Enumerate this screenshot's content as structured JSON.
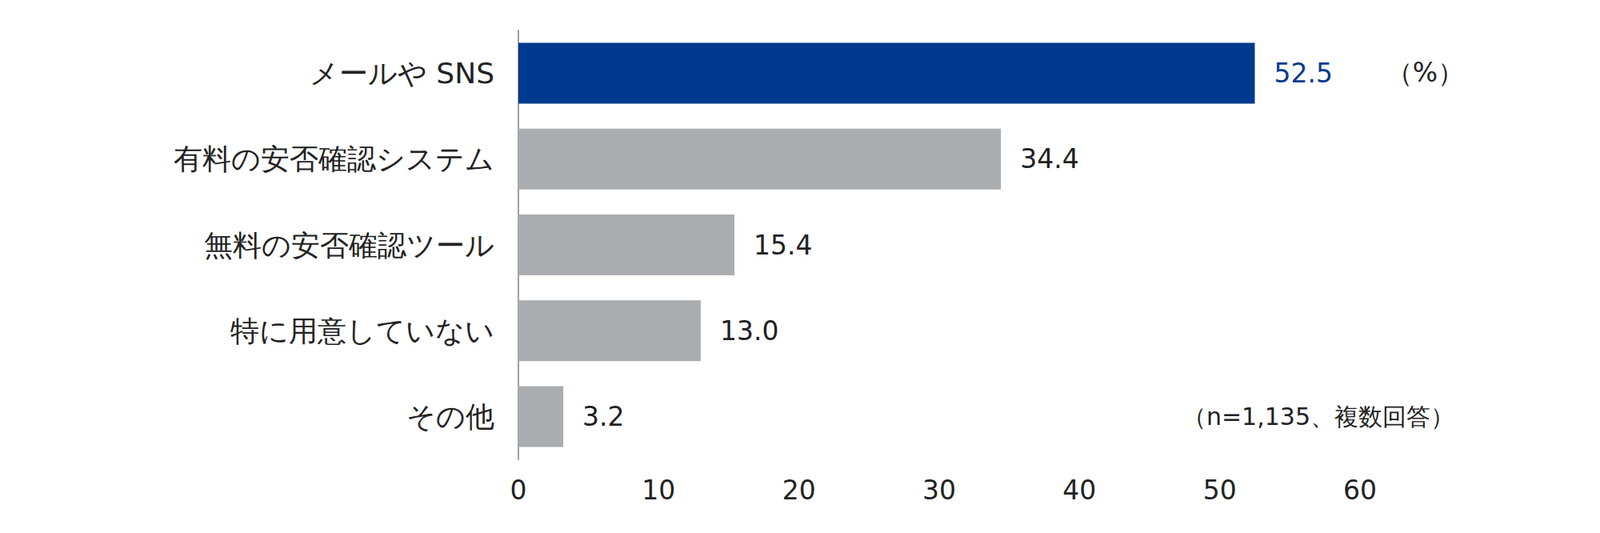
{
  "chart_data": {
    "type": "bar",
    "orientation": "horizontal",
    "categories": [
      "メールや SNS",
      "有料の安否確認システム",
      "無料の安否確認ツール",
      "特に用意していない",
      "その他"
    ],
    "values": [
      52.5,
      34.4,
      15.4,
      13.0,
      3.2
    ],
    "value_labels": [
      "52.5",
      "34.4",
      "15.4",
      "13.0",
      "3.2"
    ],
    "colors": [
      "#003a8f",
      "#a9adb0",
      "#a9adb0",
      "#a9adb0",
      "#a9adb0"
    ],
    "xlim": [
      0,
      60
    ],
    "xticks": [
      0,
      10,
      20,
      30,
      40,
      50,
      60
    ],
    "grid": false,
    "data_labels": true,
    "annotations": [
      "（%）",
      "（n=1,135、複数回答）"
    ]
  }
}
